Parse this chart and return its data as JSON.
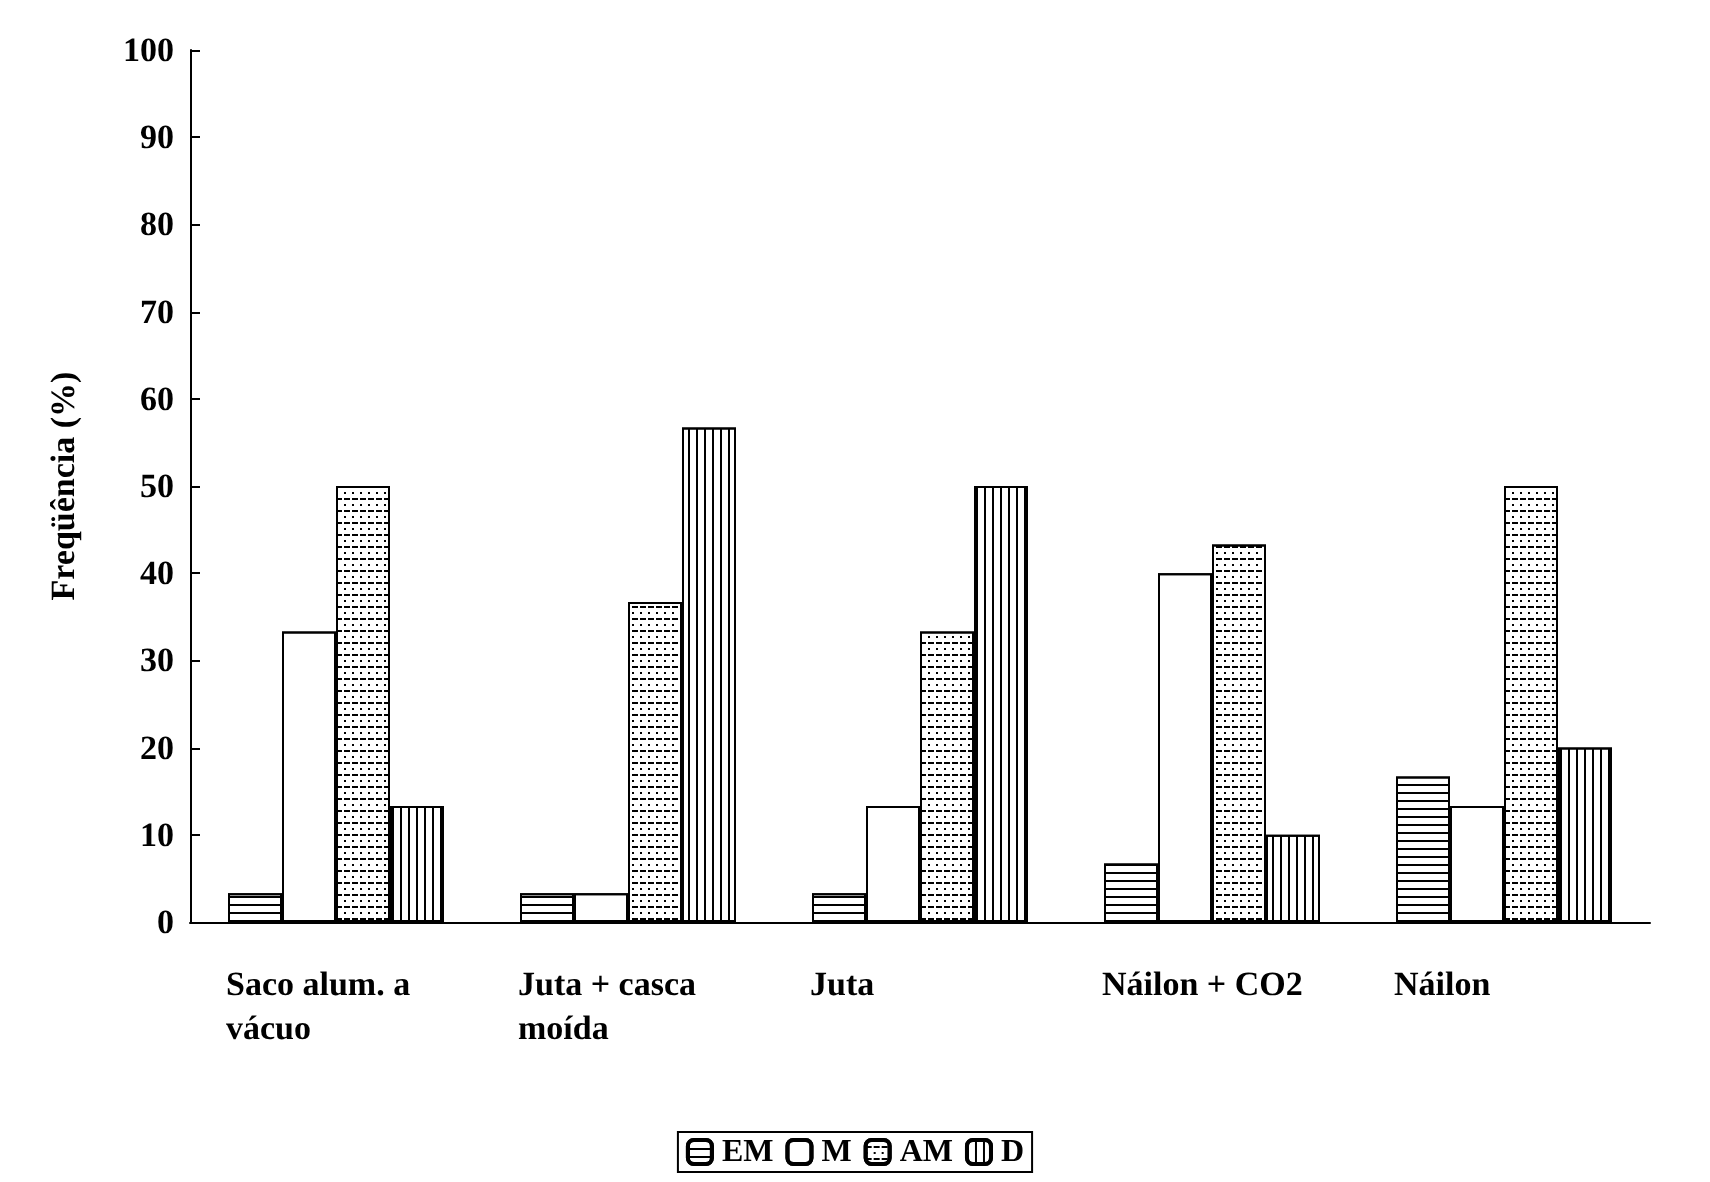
{
  "chart_data": {
    "type": "bar",
    "ylabel": "Freqüência (%)",
    "categories": [
      "Saco alum. a vácuo",
      "Juta + casca moída",
      "Juta",
      "Náilon + CO2",
      "Náilon"
    ],
    "series": [
      {
        "name": "EM",
        "color": "#ffffff",
        "values": [
          3.3,
          3.3,
          3.3,
          6.7,
          16.7
        ]
      },
      {
        "name": "M",
        "color": "#ffffff",
        "values": [
          33.3,
          3.3,
          13.3,
          40,
          13.3
        ]
      },
      {
        "name": "AM",
        "color": "#ffffff",
        "values": [
          50,
          36.7,
          33.3,
          43.3,
          50
        ]
      },
      {
        "name": "D",
        "color": "#ffffff",
        "values": [
          13.3,
          56.7,
          50,
          10,
          20
        ]
      }
    ],
    "ylim": [
      0,
      100
    ],
    "yticks": [
      0,
      10,
      20,
      30,
      40,
      50,
      60,
      70,
      80,
      90,
      100
    ],
    "grid": false,
    "legend": "bottom"
  }
}
